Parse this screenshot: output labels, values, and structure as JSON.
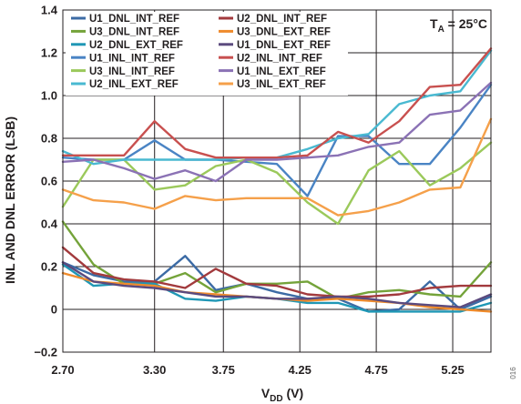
{
  "chart_data": {
    "type": "line",
    "annotation": {
      "main": "T",
      "sub": "A",
      "rest": " = 25°C"
    },
    "xlabel": {
      "main": "V",
      "sub": "DD",
      "rest": " (V)"
    },
    "ylabel": "INL AND DNL ERROR (LSB)",
    "figure_id": "016",
    "xlim": [
      2.7,
      5.5
    ],
    "ylim": [
      -0.2,
      1.4
    ],
    "x_ticks": [
      2.7,
      3.3,
      3.75,
      4.25,
      4.75,
      5.25
    ],
    "x_tick_labels": [
      "2.70",
      "3.30",
      "3.75",
      "4.25",
      "4.75",
      "5.25"
    ],
    "y_ticks": [
      -0.2,
      0,
      0.2,
      0.4,
      0.6,
      0.8,
      1.0,
      1.2,
      1.4
    ],
    "y_tick_labels": [
      "−0.2",
      "0",
      "0.2",
      "0.4",
      "0.6",
      "0.8",
      "1.0",
      "1.2",
      "1.4"
    ],
    "grid": true,
    "legend_position": "top-left",
    "x": [
      2.7,
      2.9,
      3.1,
      3.3,
      3.5,
      3.7,
      3.9,
      4.1,
      4.3,
      4.5,
      4.7,
      4.9,
      5.1,
      5.3,
      5.5
    ],
    "series": [
      {
        "name": "U1_DNL_INT_REF",
        "color": "#3c6ba5",
        "values": [
          0.22,
          0.16,
          0.13,
          0.13,
          0.25,
          0.09,
          0.12,
          0.08,
          0.05,
          0.05,
          -0.01,
          0.0,
          0.13,
          0.0,
          0.06
        ]
      },
      {
        "name": "U3_DNL_INT_REF",
        "color": "#74a33a",
        "values": [
          0.41,
          0.21,
          0.12,
          0.12,
          0.17,
          0.08,
          0.12,
          0.12,
          0.13,
          0.05,
          0.08,
          0.09,
          0.07,
          0.06,
          0.22
        ]
      },
      {
        "name": "U2_DNL_EXT_REF",
        "color": "#1f97b5",
        "values": [
          0.21,
          0.11,
          0.12,
          0.12,
          0.05,
          0.04,
          0.06,
          0.05,
          0.03,
          0.03,
          -0.01,
          -0.01,
          -0.01,
          -0.01,
          0.03
        ]
      },
      {
        "name": "U1_INL_INT_REF",
        "color": "#4a84c4",
        "values": [
          0.71,
          0.7,
          0.7,
          0.79,
          0.7,
          0.7,
          0.69,
          0.68,
          0.53,
          0.81,
          0.81,
          0.68,
          0.68,
          0.85,
          1.05
        ]
      },
      {
        "name": "U3_INL_INT_REF",
        "color": "#9bc95b",
        "values": [
          0.48,
          0.7,
          0.7,
          0.56,
          0.58,
          0.67,
          0.7,
          0.64,
          0.5,
          0.4,
          0.65,
          0.74,
          0.58,
          0.66,
          0.78
        ]
      },
      {
        "name": "U2_INL_EXT_REF",
        "color": "#49b9d1",
        "values": [
          0.74,
          0.68,
          0.7,
          0.7,
          0.7,
          0.7,
          0.71,
          0.71,
          0.75,
          0.8,
          0.82,
          0.96,
          1.0,
          1.02,
          1.21
        ]
      },
      {
        "name": "U2_DNL_INT_REF",
        "color": "#a23a3d",
        "values": [
          0.29,
          0.17,
          0.14,
          0.13,
          0.1,
          0.19,
          0.12,
          0.11,
          0.07,
          0.06,
          0.06,
          0.07,
          0.1,
          0.11,
          0.11
        ]
      },
      {
        "name": "U3_DNL_EXT_REF",
        "color": "#ef8b2c",
        "values": [
          0.17,
          0.13,
          0.12,
          0.11,
          0.08,
          0.07,
          0.06,
          0.05,
          0.04,
          0.05,
          0.04,
          0.03,
          0.01,
          0.0,
          -0.01
        ]
      },
      {
        "name": "U1_DNL_EXT_REF",
        "color": "#5b4a7e",
        "values": [
          0.22,
          0.13,
          0.11,
          0.1,
          0.08,
          0.06,
          0.06,
          0.05,
          0.05,
          0.06,
          0.05,
          0.03,
          0.02,
          0.01,
          0.07
        ]
      },
      {
        "name": "U2_INL_INT_REF",
        "color": "#c8504f",
        "values": [
          0.72,
          0.72,
          0.72,
          0.88,
          0.75,
          0.71,
          0.71,
          0.71,
          0.72,
          0.83,
          0.78,
          0.88,
          1.04,
          1.05,
          1.22
        ]
      },
      {
        "name": "U1_INL_EXT_REF",
        "color": "#8b72b5",
        "values": [
          0.69,
          0.7,
          0.66,
          0.61,
          0.65,
          0.6,
          0.7,
          0.7,
          0.71,
          0.72,
          0.76,
          0.78,
          0.91,
          0.93,
          1.06
        ]
      },
      {
        "name": "U3_INL_EXT_REF",
        "color": "#f5a04a",
        "values": [
          0.56,
          0.51,
          0.5,
          0.47,
          0.53,
          0.51,
          0.52,
          0.52,
          0.52,
          0.44,
          0.46,
          0.5,
          0.56,
          0.57,
          0.89
        ]
      }
    ]
  }
}
